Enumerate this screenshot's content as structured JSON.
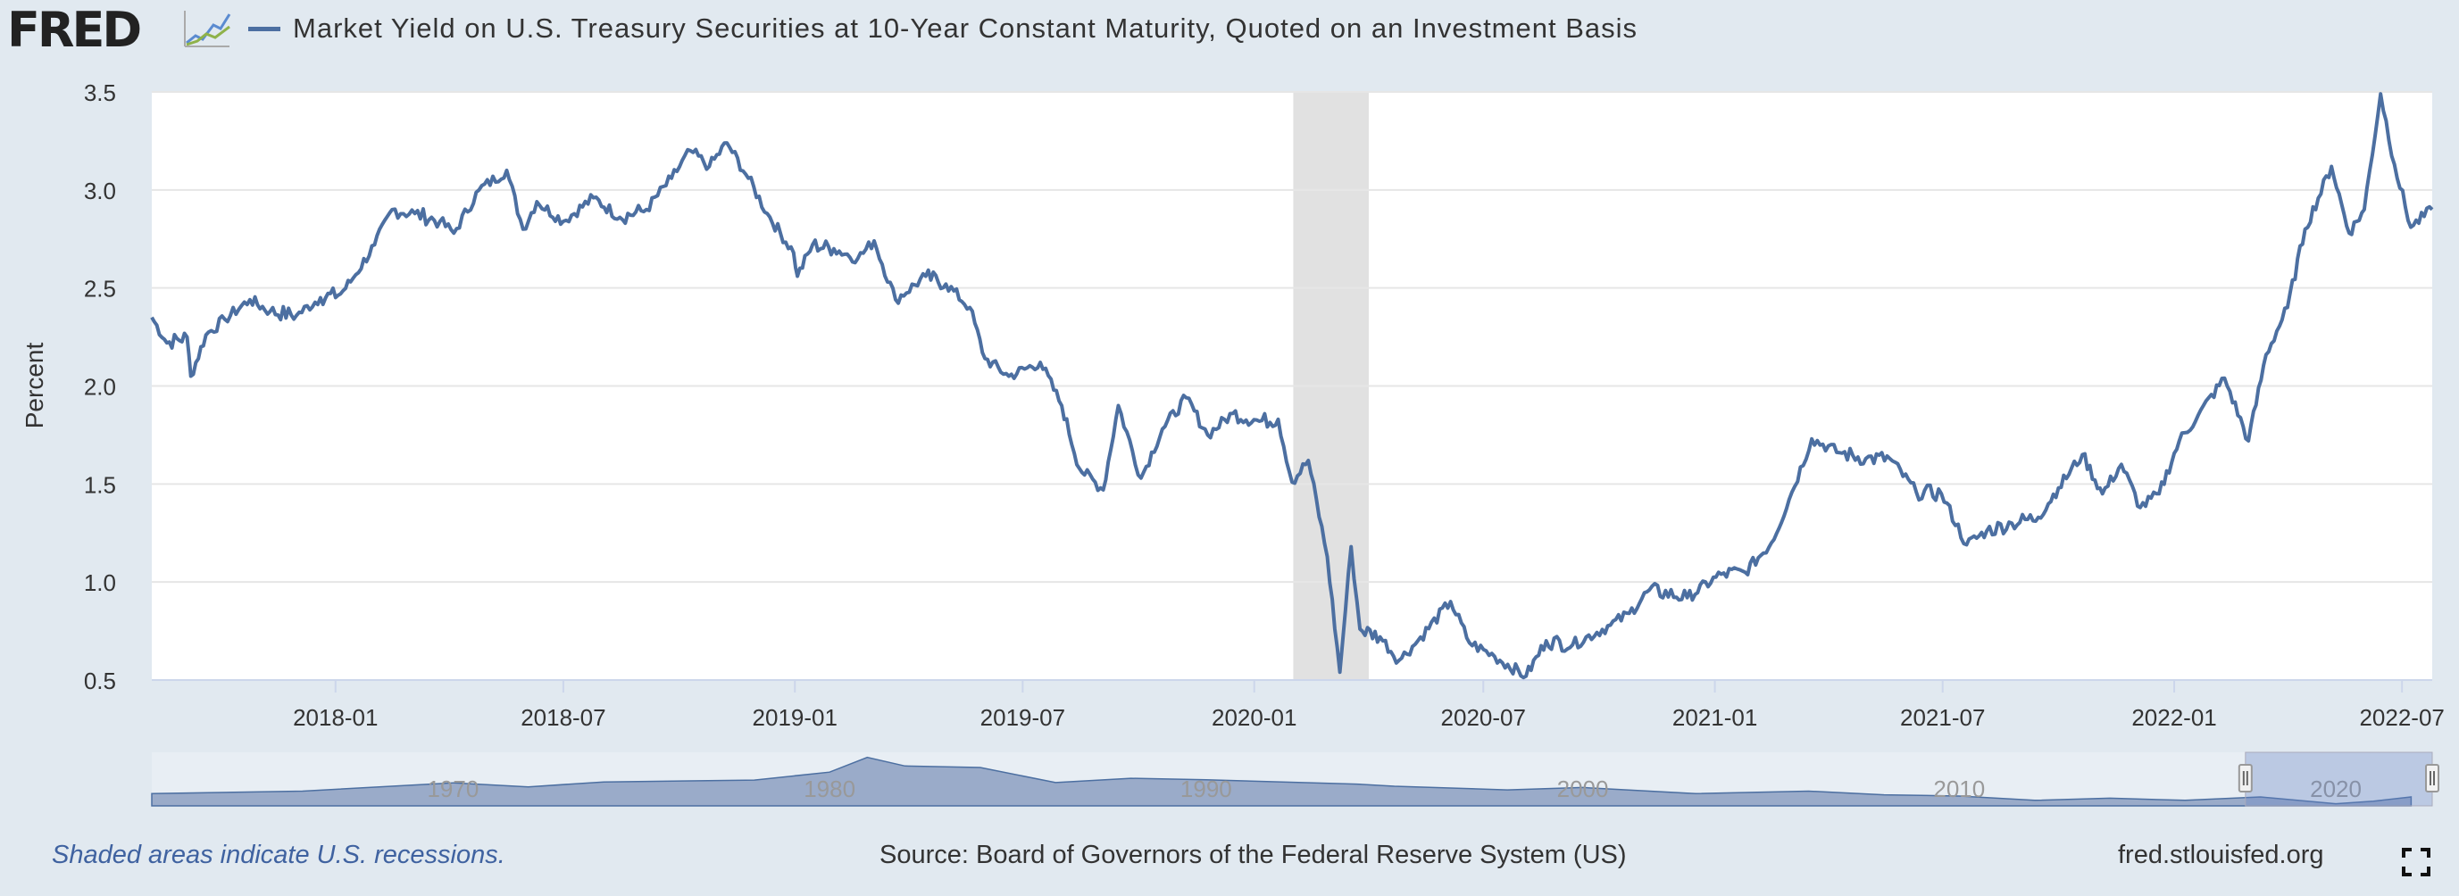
{
  "header": {
    "logo_text": "FRED",
    "logo_icon": "line-graph-icon",
    "title": "Market Yield on U.S. Treasury Securities at 10-Year Constant Maturity, Quoted on an Investment Basis"
  },
  "footer": {
    "note": "Shaded areas indicate U.S. recessions.",
    "source": "Source: Board of Governors of the Federal Reserve System (US)",
    "site": "fred.stlouisfed.org",
    "fullscreen_icon": "fullscreen-icon"
  },
  "colors": {
    "series": "#4c6fa1",
    "recession": "#e1e1e1",
    "navigator_fill": "#9aabc9",
    "background": "#e1e9f0"
  },
  "chart_data": {
    "type": "line",
    "title": "Market Yield on U.S. Treasury Securities at 10-Year Constant Maturity, Quoted on an Investment Basis",
    "xlabel": "",
    "ylabel": "Percent",
    "xlim": [
      "2017-08-08",
      "2022-07-25"
    ],
    "ylim": [
      0.5,
      3.5
    ],
    "y_ticks": [
      "0.5",
      "1.0",
      "1.5",
      "2.0",
      "2.5",
      "3.0",
      "3.5"
    ],
    "x_ticks": [
      {
        "date": "2018-01-01",
        "label": "2018-01"
      },
      {
        "date": "2018-07-01",
        "label": "2018-07"
      },
      {
        "date": "2019-01-01",
        "label": "2019-01"
      },
      {
        "date": "2019-07-01",
        "label": "2019-07"
      },
      {
        "date": "2020-01-01",
        "label": "2020-01"
      },
      {
        "date": "2020-07-01",
        "label": "2020-07"
      },
      {
        "date": "2021-01-01",
        "label": "2021-01"
      },
      {
        "date": "2021-07-01",
        "label": "2021-07"
      },
      {
        "date": "2022-01-01",
        "label": "2022-01"
      },
      {
        "date": "2022-07-01",
        "label": "2022-07"
      }
    ],
    "grid": true,
    "legend": "top-left",
    "recessions": [
      {
        "start": "2020-02-01",
        "end": "2020-04-01"
      }
    ],
    "series": [
      {
        "name": "Market Yield on U.S. Treasury Securities at 10-Year Constant Maturity, Quoted on an Investment Basis",
        "points": [
          [
            "2017-08-08",
            2.35
          ],
          [
            "2017-08-20",
            2.22
          ],
          [
            "2017-09-05",
            2.25
          ],
          [
            "2017-09-08",
            2.05
          ],
          [
            "2017-09-20",
            2.26
          ],
          [
            "2017-10-05",
            2.34
          ],
          [
            "2017-10-25",
            2.44
          ],
          [
            "2017-11-10",
            2.38
          ],
          [
            "2017-12-01",
            2.36
          ],
          [
            "2017-12-20",
            2.45
          ],
          [
            "2018-01-05",
            2.47
          ],
          [
            "2018-01-15",
            2.55
          ],
          [
            "2018-02-01",
            2.72
          ],
          [
            "2018-02-15",
            2.9
          ],
          [
            "2018-03-05",
            2.88
          ],
          [
            "2018-03-25",
            2.84
          ],
          [
            "2018-04-05",
            2.78
          ],
          [
            "2018-04-25",
            3.0
          ],
          [
            "2018-05-17",
            3.1
          ],
          [
            "2018-05-30",
            2.8
          ],
          [
            "2018-06-10",
            2.94
          ],
          [
            "2018-07-01",
            2.84
          ],
          [
            "2018-07-25",
            2.96
          ],
          [
            "2018-08-15",
            2.86
          ],
          [
            "2018-09-05",
            2.9
          ],
          [
            "2018-09-25",
            3.06
          ],
          [
            "2018-10-10",
            3.2
          ],
          [
            "2018-10-25",
            3.12
          ],
          [
            "2018-11-08",
            3.24
          ],
          [
            "2018-11-25",
            3.06
          ],
          [
            "2018-12-10",
            2.88
          ],
          [
            "2018-12-31",
            2.68
          ],
          [
            "2019-01-03",
            2.56
          ],
          [
            "2019-01-15",
            2.72
          ],
          [
            "2019-02-01",
            2.7
          ],
          [
            "2019-02-20",
            2.65
          ],
          [
            "2019-03-05",
            2.74
          ],
          [
            "2019-03-22",
            2.44
          ],
          [
            "2019-04-15",
            2.56
          ],
          [
            "2019-05-01",
            2.52
          ],
          [
            "2019-05-20",
            2.4
          ],
          [
            "2019-06-01",
            2.14
          ],
          [
            "2019-06-20",
            2.05
          ],
          [
            "2019-07-15",
            2.12
          ],
          [
            "2019-08-01",
            1.9
          ],
          [
            "2019-08-15",
            1.58
          ],
          [
            "2019-09-03",
            1.47
          ],
          [
            "2019-09-15",
            1.9
          ],
          [
            "2019-10-03",
            1.53
          ],
          [
            "2019-10-20",
            1.78
          ],
          [
            "2019-11-08",
            1.94
          ],
          [
            "2019-11-25",
            1.75
          ],
          [
            "2019-12-15",
            1.86
          ],
          [
            "2020-01-05",
            1.82
          ],
          [
            "2020-01-20",
            1.83
          ],
          [
            "2020-01-31",
            1.51
          ],
          [
            "2020-02-13",
            1.62
          ],
          [
            "2020-02-28",
            1.13
          ],
          [
            "2020-03-09",
            0.54
          ],
          [
            "2020-03-18",
            1.18
          ],
          [
            "2020-03-25",
            0.76
          ],
          [
            "2020-04-10",
            0.72
          ],
          [
            "2020-04-25",
            0.6
          ],
          [
            "2020-05-10",
            0.7
          ],
          [
            "2020-06-05",
            0.9
          ],
          [
            "2020-06-20",
            0.69
          ],
          [
            "2020-07-10",
            0.62
          ],
          [
            "2020-08-04",
            0.52
          ],
          [
            "2020-08-20",
            0.7
          ],
          [
            "2020-09-10",
            0.68
          ],
          [
            "2020-10-10",
            0.78
          ],
          [
            "2020-10-25",
            0.84
          ],
          [
            "2020-11-10",
            0.96
          ],
          [
            "2020-12-10",
            0.92
          ],
          [
            "2021-01-06",
            1.04
          ],
          [
            "2021-01-25",
            1.05
          ],
          [
            "2021-02-15",
            1.2
          ],
          [
            "2021-03-01",
            1.42
          ],
          [
            "2021-03-19",
            1.73
          ],
          [
            "2021-04-10",
            1.66
          ],
          [
            "2021-05-01",
            1.63
          ],
          [
            "2021-05-20",
            1.63
          ],
          [
            "2021-06-10",
            1.46
          ],
          [
            "2021-06-30",
            1.45
          ],
          [
            "2021-07-20",
            1.19
          ],
          [
            "2021-08-05",
            1.26
          ],
          [
            "2021-08-25",
            1.3
          ],
          [
            "2021-09-15",
            1.33
          ],
          [
            "2021-10-01",
            1.48
          ],
          [
            "2021-10-20",
            1.65
          ],
          [
            "2021-11-05",
            1.45
          ],
          [
            "2021-11-20",
            1.6
          ],
          [
            "2021-12-05",
            1.38
          ],
          [
            "2021-12-20",
            1.45
          ],
          [
            "2022-01-05",
            1.72
          ],
          [
            "2022-01-20",
            1.85
          ],
          [
            "2022-02-10",
            2.04
          ],
          [
            "2022-03-01",
            1.72
          ],
          [
            "2022-03-15",
            2.16
          ],
          [
            "2022-04-01",
            2.4
          ],
          [
            "2022-04-15",
            2.8
          ],
          [
            "2022-05-06",
            3.12
          ],
          [
            "2022-05-20",
            2.78
          ],
          [
            "2022-06-01",
            2.9
          ],
          [
            "2022-06-14",
            3.49
          ],
          [
            "2022-06-25",
            3.13
          ],
          [
            "2022-07-08",
            2.81
          ],
          [
            "2022-07-25",
            2.9
          ]
        ]
      }
    ],
    "navigator": {
      "tick_labels": [
        "1970",
        "1980",
        "1990",
        "2000",
        "2010",
        "2020"
      ],
      "history": [
        [
          1962,
          4.0
        ],
        [
          1966,
          4.8
        ],
        [
          1970,
          7.5
        ],
        [
          1972,
          6.2
        ],
        [
          1974,
          7.8
        ],
        [
          1978,
          8.4
        ],
        [
          1980,
          11.0
        ],
        [
          1981,
          15.8
        ],
        [
          1982,
          13.0
        ],
        [
          1984,
          12.5
        ],
        [
          1986,
          7.6
        ],
        [
          1988,
          9.0
        ],
        [
          1990,
          8.5
        ],
        [
          1994,
          7.1
        ],
        [
          1995,
          6.4
        ],
        [
          1998,
          5.2
        ],
        [
          2000,
          6.0
        ],
        [
          2003,
          4.0
        ],
        [
          2006,
          4.8
        ],
        [
          2008,
          3.6
        ],
        [
          2010,
          3.2
        ],
        [
          2012,
          1.8
        ],
        [
          2014,
          2.5
        ],
        [
          2016,
          1.8
        ],
        [
          2018,
          2.9
        ],
        [
          2020,
          0.7
        ],
        [
          2021,
          1.5
        ],
        [
          2022,
          2.9
        ]
      ],
      "selected_range": [
        2017.6,
        2022.56
      ]
    }
  }
}
